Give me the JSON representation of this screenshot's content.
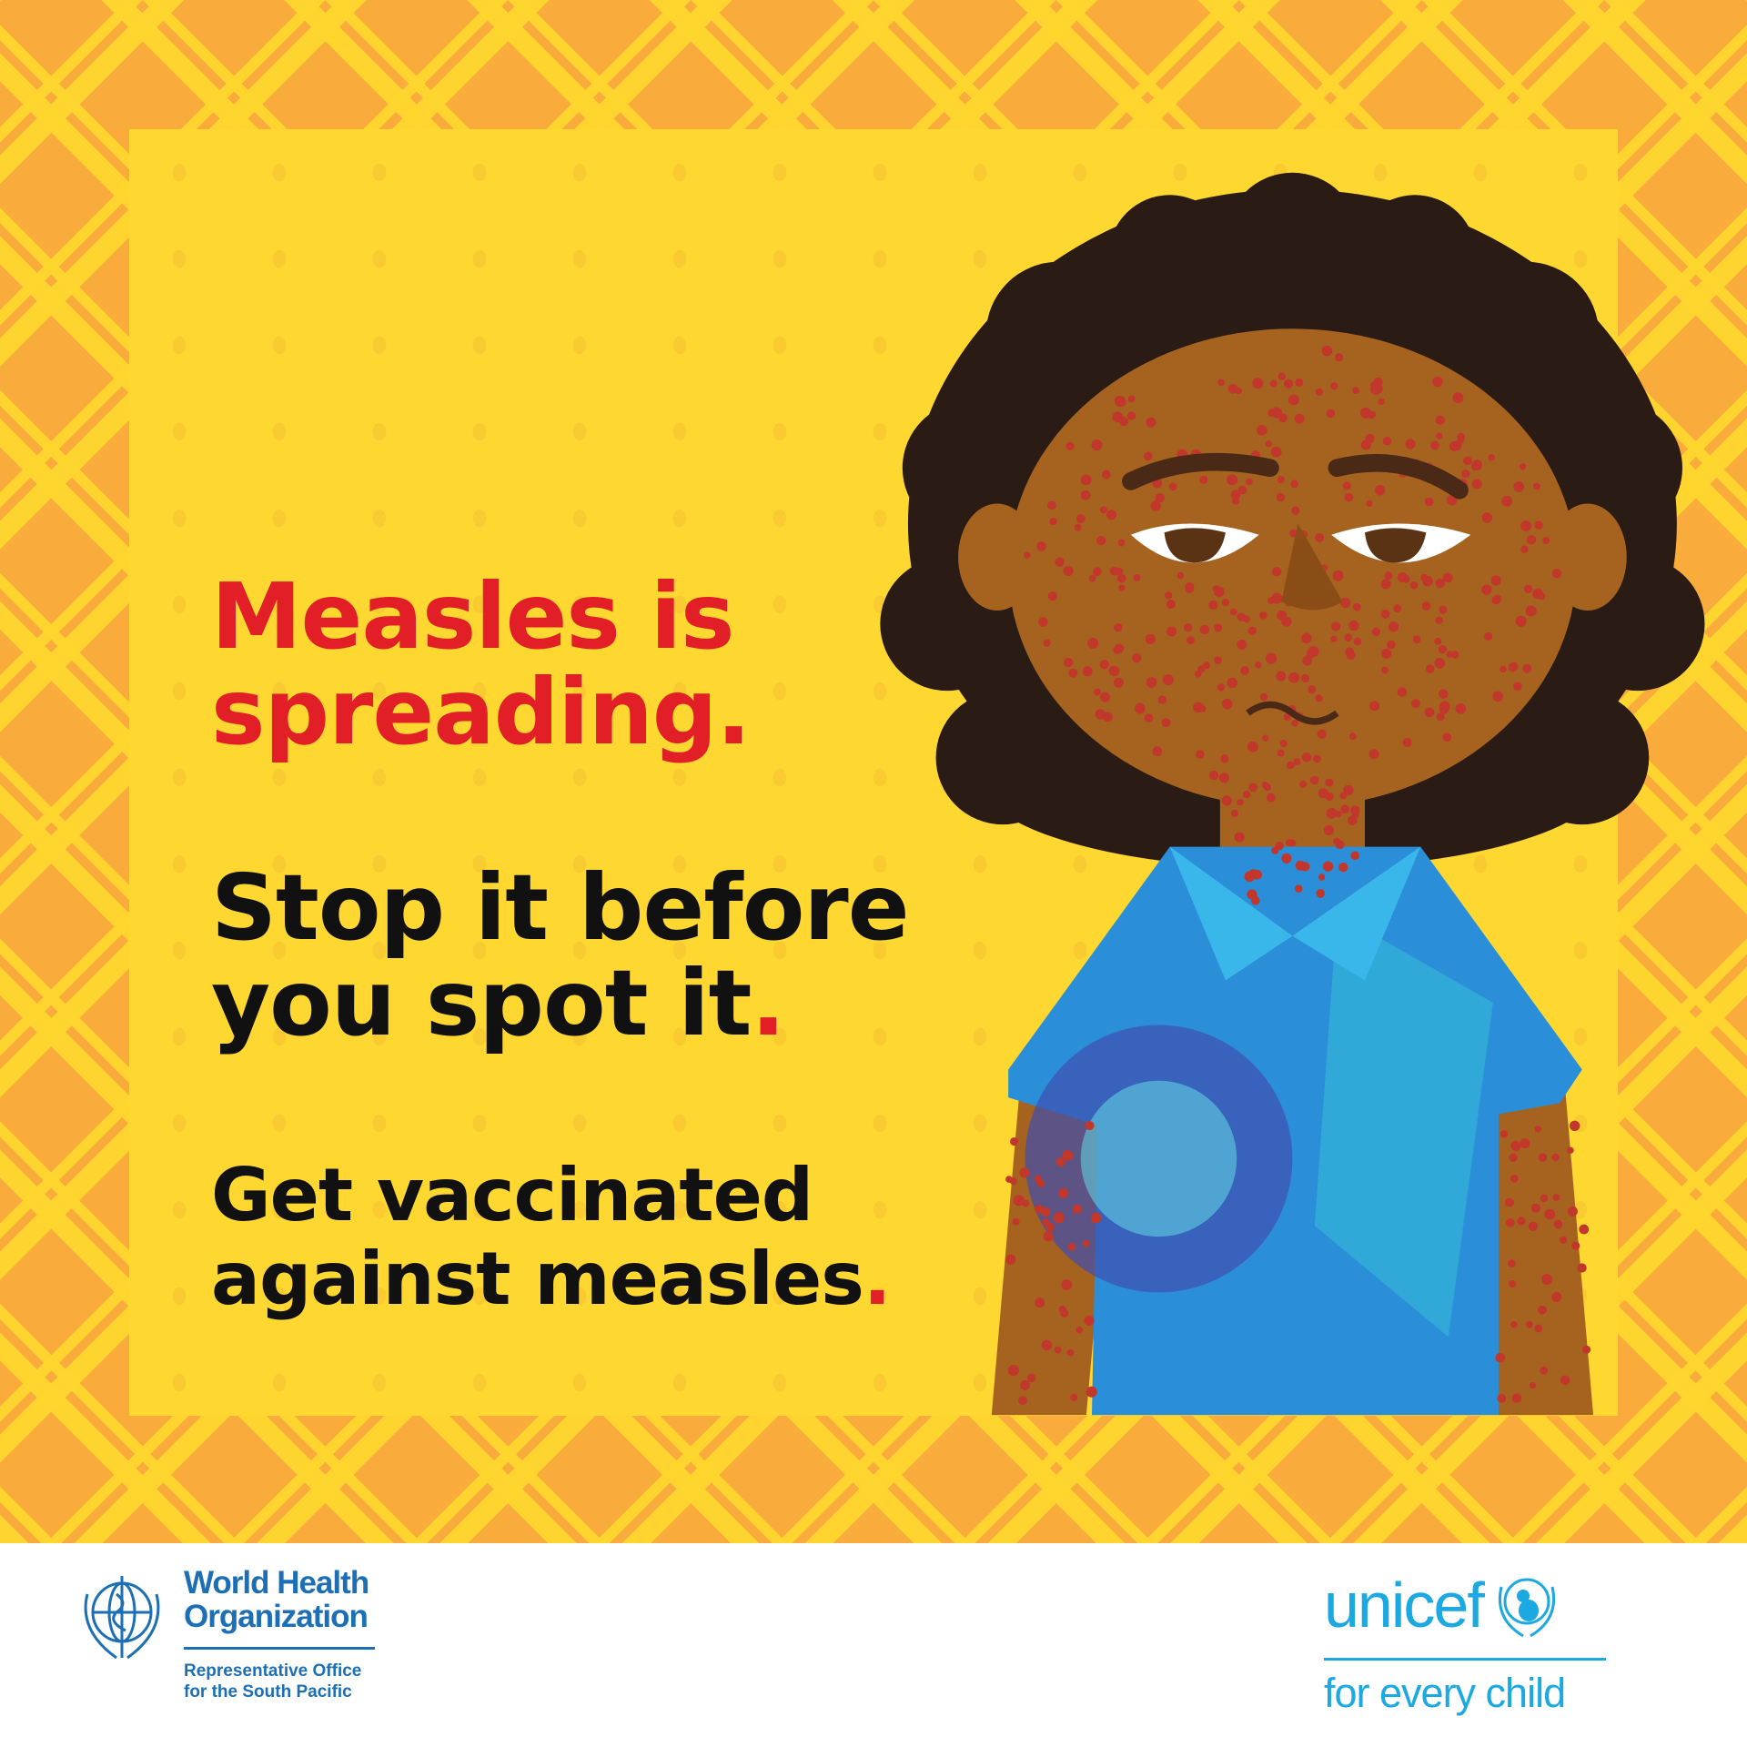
{
  "headline": {
    "line1a": "Measles is",
    "line1b": "spreading",
    "line2a": "Stop it before",
    "line2b": "you spot it",
    "line3a": "Get vaccinated",
    "line3b": "against measles",
    "period": "."
  },
  "footer": {
    "who_name": "World Health Organization",
    "who_office_line1": "Representative Office",
    "who_office_line2": "for the South Pacific",
    "unicef_name": "unicef",
    "unicef_tagline": "for every child"
  },
  "colors": {
    "border": "#f9ab3b",
    "panel": "#fed731",
    "headline_red": "#e21f26",
    "who_blue": "#1c6fb5",
    "unicef_blue": "#1ca9e1"
  },
  "icons": [
    "who-emblem-icon",
    "unicef-emblem-icon"
  ]
}
